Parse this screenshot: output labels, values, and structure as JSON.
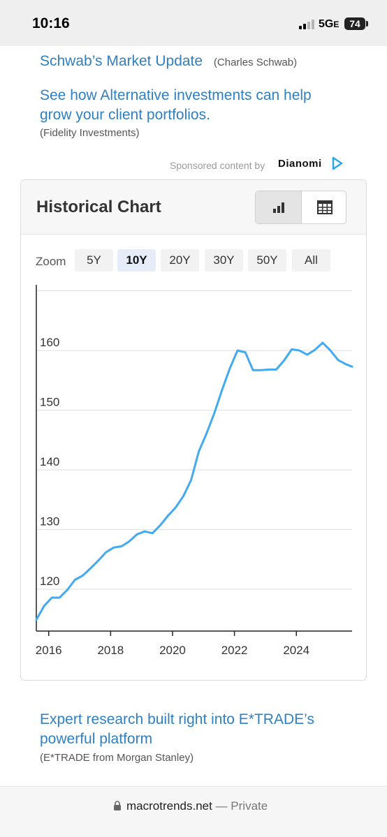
{
  "status": {
    "time": "10:16",
    "network": "5G",
    "network_suffix": "E",
    "battery": "74"
  },
  "ads": [
    {
      "title": "Schwab’s Market Update",
      "source": "(Charles Schwab)"
    },
    {
      "title_line1": "See how Alternative investments can help",
      "title_line2": "grow your client portfolios.",
      "source": "(Fidelity Investments)"
    },
    {
      "title_line1": "Expert research built right into E*TRADE’s",
      "title_line2": "powerful platform",
      "source": "(E*TRADE from Morgan Stanley)"
    }
  ],
  "sponsored": {
    "label": "Sponsored content by",
    "brand": "Dianomi"
  },
  "chart_card": {
    "title": "Historical Chart",
    "toggle": {
      "chart_icon": "bar-chart-icon",
      "table_icon": "table-icon",
      "active": "chart"
    },
    "zoom_label": "Zoom",
    "zoom_options": [
      "5Y",
      "10Y",
      "20Y",
      "30Y",
      "50Y",
      "All"
    ],
    "zoom_active": "10Y"
  },
  "chart_data": {
    "type": "line",
    "ylim": [
      113,
      171
    ],
    "xlim": [
      2015.6,
      2025.8
    ],
    "yticks": [
      120,
      130,
      140,
      150,
      160
    ],
    "xticks": [
      2016,
      2018,
      2020,
      2022,
      2024
    ],
    "grid": true,
    "color": "#41aaf0",
    "x": [
      2015.6,
      2015.85,
      2016.1,
      2016.35,
      2016.6,
      2016.85,
      2017.1,
      2017.35,
      2017.6,
      2017.85,
      2018.1,
      2018.35,
      2018.6,
      2018.85,
      2019.1,
      2019.35,
      2019.6,
      2019.85,
      2020.1,
      2020.35,
      2020.6,
      2020.85,
      2021.1,
      2021.35,
      2021.6,
      2021.85,
      2022.1,
      2022.35,
      2022.6,
      2022.85,
      2023.1,
      2023.35,
      2023.6,
      2023.85,
      2024.1,
      2024.35,
      2024.6,
      2024.85,
      2025.1,
      2025.35,
      2025.6,
      2025.8
    ],
    "y": [
      114.9,
      117.2,
      118.6,
      118.6,
      119.9,
      121.6,
      122.3,
      123.5,
      124.8,
      126.2,
      127.0,
      127.2,
      128.0,
      129.2,
      129.7,
      129.4,
      130.7,
      132.3,
      133.7,
      135.6,
      138.3,
      143.1,
      146.1,
      149.5,
      153.4,
      157.0,
      160.0,
      159.7,
      156.7,
      156.7,
      156.8,
      156.8,
      158.3,
      160.2,
      160.0,
      159.3,
      160.1,
      161.3,
      160.0,
      158.4,
      157.7,
      157.3
    ]
  },
  "urlbar": {
    "domain": "macrotrends.net",
    "suffix": "— Private"
  }
}
